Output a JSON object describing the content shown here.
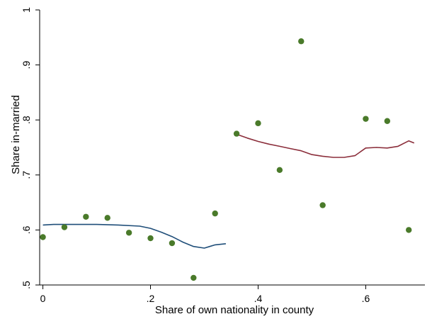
{
  "chart_data": {
    "type": "scatter",
    "xlabel": "Share of own nationality in county",
    "ylabel": "Share in-married",
    "xlim": [
      -0.006,
      0.71
    ],
    "ylim": [
      0.5,
      1.0
    ],
    "x_ticks": [
      {
        "value": 0,
        "label": "0"
      },
      {
        "value": 0.2,
        "label": ".2"
      },
      {
        "value": 0.4,
        "label": ".4"
      },
      {
        "value": 0.6,
        "label": ".6"
      }
    ],
    "y_ticks": [
      {
        "value": 0.5,
        "label": ".5"
      },
      {
        "value": 0.6,
        "label": ".6"
      },
      {
        "value": 0.7,
        "label": ".7"
      },
      {
        "value": 0.8,
        "label": ".8"
      },
      {
        "value": 0.9,
        "label": ".9"
      },
      {
        "value": 1.0,
        "label": "1"
      }
    ],
    "grid": false,
    "legend": "none",
    "colors": {
      "points": "#4a7a2a",
      "fit_left": "#1f4e79",
      "fit_right": "#8b2e3b",
      "axis": "#000000"
    },
    "points": [
      {
        "x": 0.0,
        "y": 0.587
      },
      {
        "x": 0.04,
        "y": 0.605
      },
      {
        "x": 0.08,
        "y": 0.624
      },
      {
        "x": 0.12,
        "y": 0.622
      },
      {
        "x": 0.16,
        "y": 0.595
      },
      {
        "x": 0.2,
        "y": 0.585
      },
      {
        "x": 0.24,
        "y": 0.576
      },
      {
        "x": 0.28,
        "y": 0.513
      },
      {
        "x": 0.32,
        "y": 0.63
      },
      {
        "x": 0.36,
        "y": 0.775
      },
      {
        "x": 0.4,
        "y": 0.794
      },
      {
        "x": 0.44,
        "y": 0.709
      },
      {
        "x": 0.48,
        "y": 0.943
      },
      {
        "x": 0.52,
        "y": 0.645
      },
      {
        "x": 0.6,
        "y": 0.802
      },
      {
        "x": 0.64,
        "y": 0.798
      },
      {
        "x": 0.68,
        "y": 0.6
      }
    ],
    "series": [
      {
        "color": "#1f4e79",
        "x": [
          0.0,
          0.02,
          0.06,
          0.1,
          0.14,
          0.18,
          0.2,
          0.22,
          0.24,
          0.26,
          0.28,
          0.3,
          0.31,
          0.32,
          0.34
        ],
        "y": [
          0.609,
          0.61,
          0.61,
          0.61,
          0.609,
          0.607,
          0.603,
          0.596,
          0.588,
          0.578,
          0.57,
          0.567,
          0.57,
          0.573,
          0.575
        ]
      },
      {
        "color": "#8b2e3b",
        "x": [
          0.36,
          0.38,
          0.4,
          0.42,
          0.44,
          0.46,
          0.48,
          0.5,
          0.52,
          0.54,
          0.56,
          0.58,
          0.6,
          0.62,
          0.64,
          0.66,
          0.68,
          0.69
        ],
        "y": [
          0.774,
          0.767,
          0.761,
          0.756,
          0.752,
          0.748,
          0.744,
          0.737,
          0.734,
          0.732,
          0.732,
          0.735,
          0.749,
          0.75,
          0.749,
          0.752,
          0.762,
          0.758
        ]
      }
    ]
  }
}
